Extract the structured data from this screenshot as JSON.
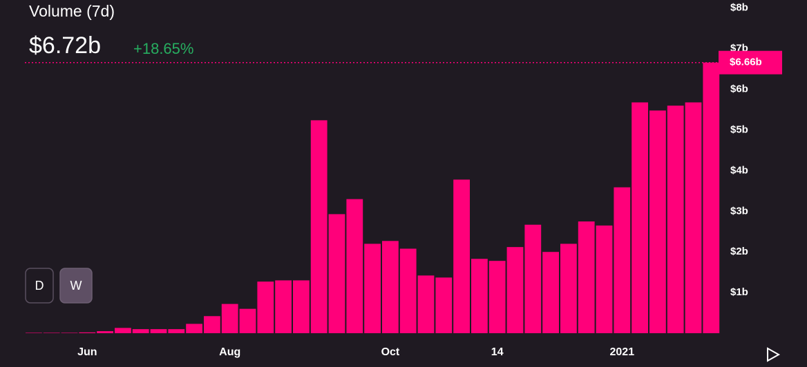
{
  "chart_data": {
    "type": "bar",
    "title": "Volume (7d)",
    "current_value": "$6.72b",
    "change": "+18.65%",
    "last_value_label": "$6.66b",
    "buttons": [
      "D",
      "W"
    ],
    "categories": [
      null,
      null,
      null,
      "Jun",
      null,
      null,
      null,
      null,
      null,
      null,
      null,
      "Aug",
      null,
      null,
      null,
      null,
      null,
      null,
      null,
      null,
      "Oct",
      null,
      null,
      null,
      null,
      null,
      "14",
      null,
      null,
      null,
      null,
      null,
      null,
      "2021",
      null,
      null,
      null,
      null,
      null
    ],
    "values": [
      0.01,
      0.01,
      0.01,
      0.02,
      0.05,
      0.13,
      0.1,
      0.1,
      0.1,
      0.23,
      0.42,
      0.72,
      0.6,
      1.27,
      1.3,
      1.3,
      5.24,
      2.93,
      3.3,
      2.2,
      2.27,
      2.08,
      1.42,
      1.37,
      3.78,
      1.83,
      1.78,
      2.12,
      2.67,
      2.0,
      2.2,
      2.75,
      2.65,
      3.59,
      5.68,
      5.48,
      5.6,
      5.68,
      6.66
    ],
    "color": "#ff007a",
    "ylim": [
      0,
      8.2
    ],
    "yticks": [
      {
        "value": 1,
        "label": "$1b"
      },
      {
        "value": 2,
        "label": "$2b"
      },
      {
        "value": 3,
        "label": "$3b"
      },
      {
        "value": 4,
        "label": "$4b"
      },
      {
        "value": 5,
        "label": "$5b"
      },
      {
        "value": 6,
        "label": "$6b"
      },
      {
        "value": 7,
        "label": "$7b"
      },
      {
        "value": 8,
        "label": "$8b"
      }
    ],
    "grid": false
  }
}
